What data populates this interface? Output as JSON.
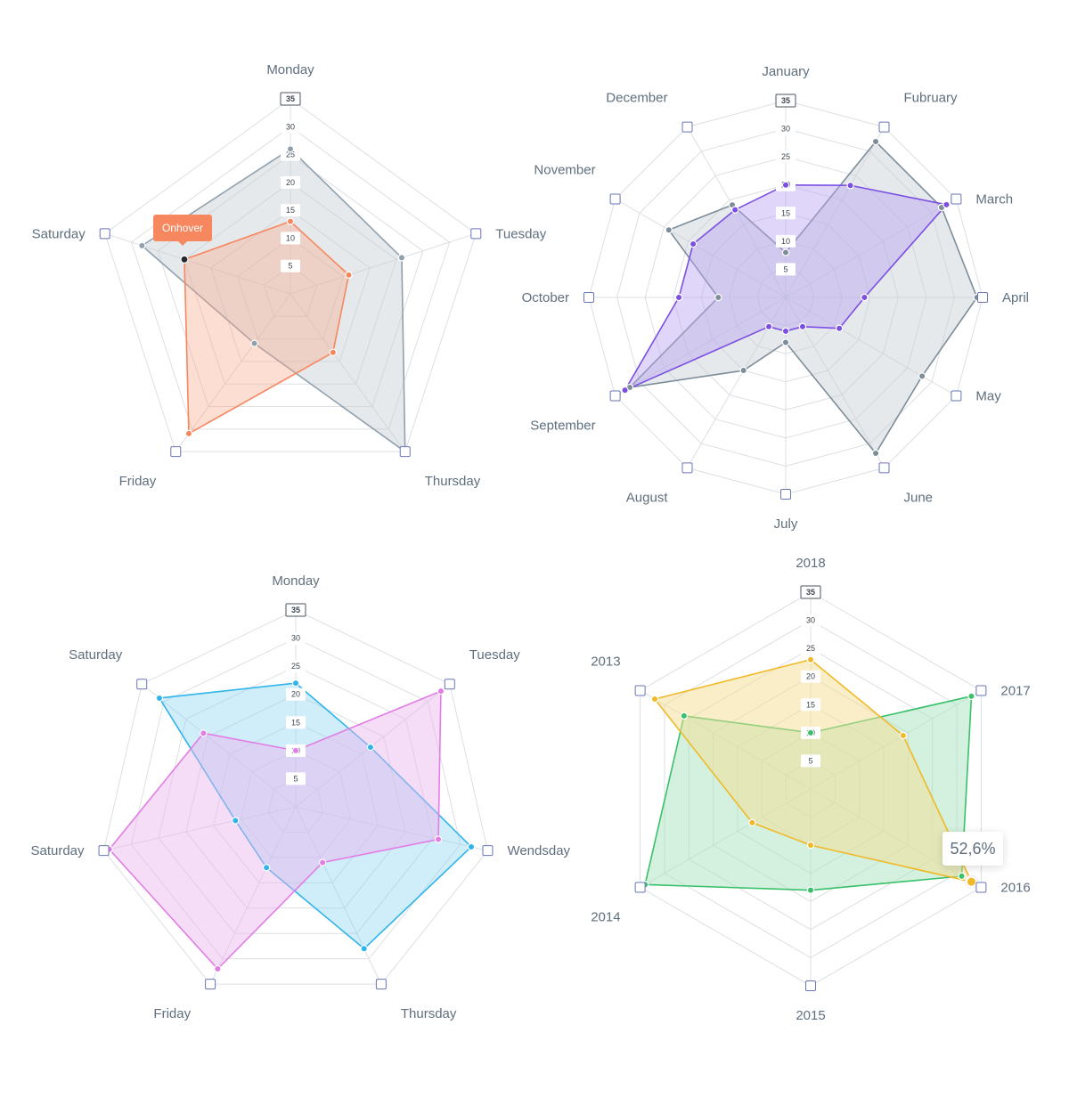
{
  "chart_data": [
    {
      "type": "radar",
      "categories": [
        "Monday",
        "Tuesday",
        "Thursday",
        "Friday",
        "Saturday"
      ],
      "ticks": [
        "5",
        "10",
        "15",
        "20",
        "25",
        "30",
        "35"
      ],
      "rmax": 35,
      "series": [
        {
          "color": "#90a1ad",
          "fill": "#c6ced3",
          "opacity": 0.45,
          "values": [
            26,
            21,
            35,
            11,
            28
          ]
        },
        {
          "color": "#f7875f",
          "fill": "#f9a98c",
          "opacity": 0.38,
          "values": [
            13,
            11,
            13,
            31,
            20
          ]
        }
      ],
      "highlight": {
        "series": 1,
        "index": 4,
        "color": "#222a30"
      },
      "tooltip": {
        "text": "Onhover",
        "series": 1,
        "index": 4
      }
    },
    {
      "type": "radar",
      "categories": [
        "January",
        "Fubruary",
        "March",
        "April",
        "May",
        "June",
        "July",
        "August",
        "September",
        "October",
        "November",
        "December"
      ],
      "ticks": [
        "5",
        "10",
        "15",
        "20",
        "25",
        "30",
        "35"
      ],
      "rmax": 35,
      "series": [
        {
          "color": "#7d8d99",
          "fill": "#c6ced3",
          "opacity": 0.45,
          "values": [
            8,
            32,
            32,
            34,
            28,
            32,
            8,
            15,
            32,
            12,
            24,
            19
          ]
        },
        {
          "color": "#7b4fe3",
          "fill": "#b9a3f2",
          "opacity": 0.45,
          "values": [
            20,
            23,
            33,
            14,
            11,
            6,
            6,
            6,
            33,
            19,
            19,
            18
          ]
        }
      ]
    },
    {
      "type": "radar",
      "categories": [
        "Monday",
        "Tuesday",
        "Wendsday",
        "Thursday",
        "Friday",
        "Saturday",
        "Saturday"
      ],
      "ticks": [
        "5",
        "10",
        "15",
        "20",
        "25",
        "30",
        "35"
      ],
      "rmax": 35,
      "series": [
        {
          "color": "#2fb4eb",
          "fill": "#8ad2f3",
          "opacity": 0.4,
          "values": [
            22,
            17,
            32,
            28,
            12,
            11,
            31
          ]
        },
        {
          "color": "#e27de5",
          "fill": "#ebb3ee",
          "opacity": 0.45,
          "values": [
            10,
            33,
            26,
            11,
            32,
            34,
            21
          ]
        }
      ]
    },
    {
      "type": "radar",
      "categories": [
        "2018",
        "2017",
        "2016",
        "2015",
        "2014",
        "2013"
      ],
      "ticks": [
        "5",
        "10",
        "15",
        "20",
        "25",
        "30",
        "35"
      ],
      "rmax": 35,
      "series": [
        {
          "color": "#38c06a",
          "fill": "#a8e3bd",
          "opacity": 0.5,
          "values": [
            10,
            33,
            31,
            18,
            34,
            26
          ]
        },
        {
          "color": "#f0b928",
          "fill": "#f6dd92",
          "opacity": 0.5,
          "values": [
            23,
            19,
            33,
            10,
            12,
            32
          ]
        }
      ],
      "highlight": {
        "series": 1,
        "index": 2,
        "color": "#f0b928",
        "big": true
      },
      "tooltip": {
        "text": "52,6%",
        "series": 1,
        "index": 2
      }
    }
  ]
}
